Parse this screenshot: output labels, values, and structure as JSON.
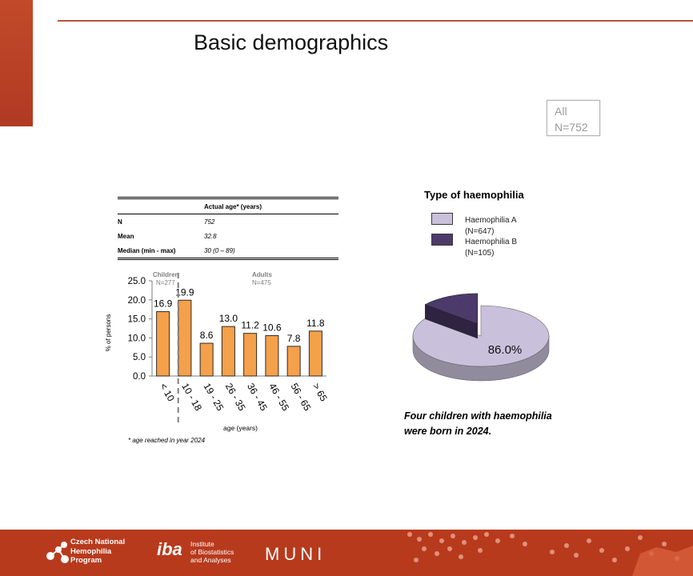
{
  "title": "Basic demographics",
  "all_box": {
    "line1": "All",
    "line2": "N=752"
  },
  "stats_table": {
    "header": "Actual age* (years)",
    "rows": [
      {
        "label": "N",
        "value": "752"
      },
      {
        "label": "Mean",
        "value": "32.8"
      },
      {
        "label": "Median (min - max)",
        "value": "30 (0 – 89)"
      }
    ]
  },
  "groups": {
    "children": {
      "label": "Children",
      "n": "N=277"
    },
    "adults": {
      "label": "Adults",
      "n": "N=475"
    }
  },
  "footnote": "* age reached in year 2024",
  "chart_data": [
    {
      "type": "bar",
      "categories": [
        "< 10",
        "10 - 18",
        "19 - 25",
        "26 - 35",
        "36 - 45",
        "46 - 55",
        "56 - 65",
        "> 65"
      ],
      "values": [
        16.9,
        19.9,
        8.6,
        13.0,
        11.2,
        10.6,
        7.8,
        11.8
      ],
      "value_labels": [
        "16.9",
        "19.9",
        "8.6",
        "13.0",
        "11.2",
        "10.6",
        "7.8",
        "11.8"
      ],
      "yticks": [
        "0.0",
        "5.0",
        "10.0",
        "15.0",
        "20.0",
        "25.0"
      ],
      "ylim": [
        0,
        25
      ],
      "xlabel": "age (years)",
      "ylabel": "% of persons",
      "bar_color": "#f5a04a"
    },
    {
      "type": "pie",
      "title": "Type of haemophilia",
      "labels": [
        "Haemophilia A (N=647)",
        "Haemophilia B (N=105)"
      ],
      "values": [
        86.0,
        14.0
      ],
      "data_label": "86.0%",
      "colors": [
        "#c9c1dc",
        "#4c3a6b"
      ]
    }
  ],
  "legend": [
    {
      "name": "Haemophilia A",
      "n": "(N=647)",
      "color": "#c9c1dc"
    },
    {
      "name": "Haemophilia B",
      "n": "(N=105)",
      "color": "#4c3a6b"
    }
  ],
  "note": {
    "line1": "Four children with haemophilia",
    "line2": "were born in 2024."
  },
  "footer": {
    "logo1": [
      "Czech National",
      "Hemophilia",
      "Program"
    ],
    "logo2_mark": "iba",
    "logo2": [
      "Institute",
      "of Biostatistics",
      "and Analyses"
    ],
    "logo3": "MUNI"
  }
}
